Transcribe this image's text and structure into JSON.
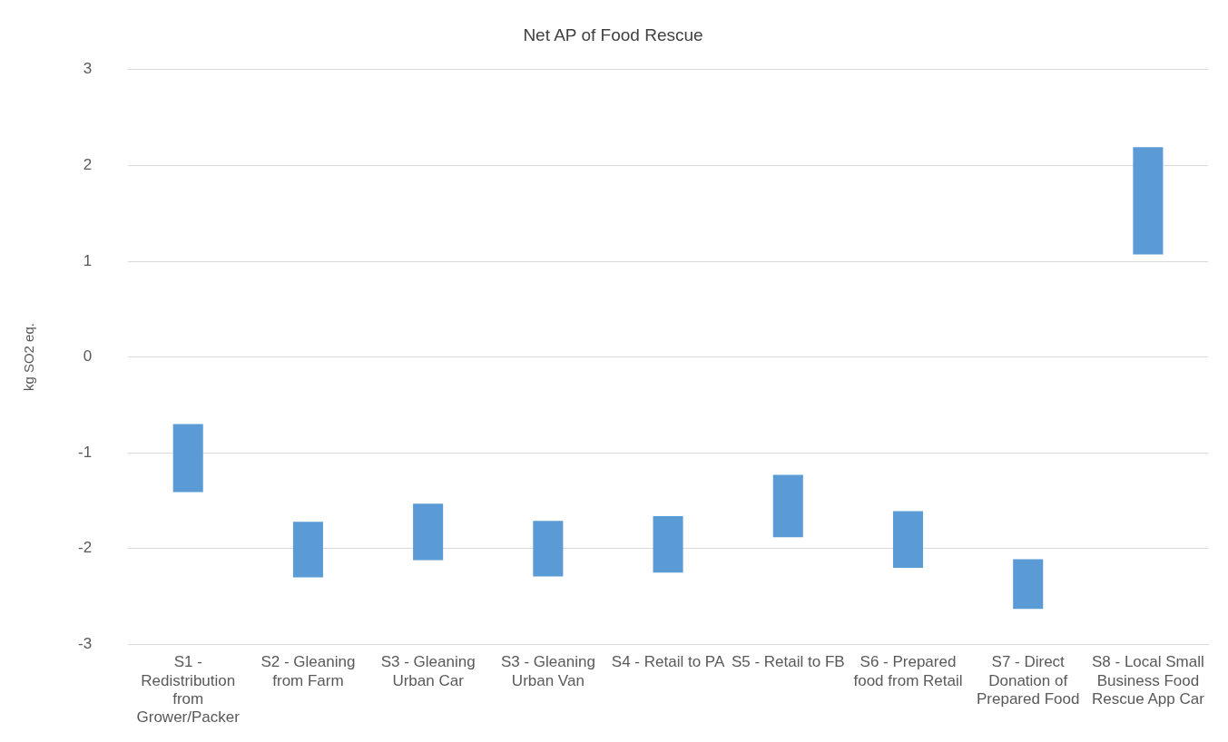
{
  "chart_data": {
    "type": "bar",
    "title": "Net AP of Food Rescue",
    "ylabel": "kg SO2 eq.",
    "categories": [
      "S1 - Redistribution from Grower/Packer",
      "S2 - Gleaning from Farm",
      "S3 - Gleaning Urban Car",
      "S3 - Gleaning Urban Van",
      "S4 - Retail to PA",
      "S5 - Retail to FB",
      "S6 - Prepared food from Retail",
      "S7 - Direct Donation of Prepared Food",
      "S8 - Local Small Business Food Rescue App Car"
    ],
    "base": [
      -1.41,
      -2.3,
      -2.12,
      -2.29,
      -2.25,
      -1.88,
      -2.2,
      -2.63,
      1.07
    ],
    "values": [
      0.71,
      0.58,
      0.59,
      0.58,
      0.59,
      0.65,
      0.59,
      0.52,
      1.12
    ],
    "color": "#5b9bd5",
    "ylim": [
      -3,
      3
    ],
    "yticks": [
      -3,
      -2,
      -1,
      0,
      1,
      2,
      3
    ],
    "grid": "y"
  }
}
